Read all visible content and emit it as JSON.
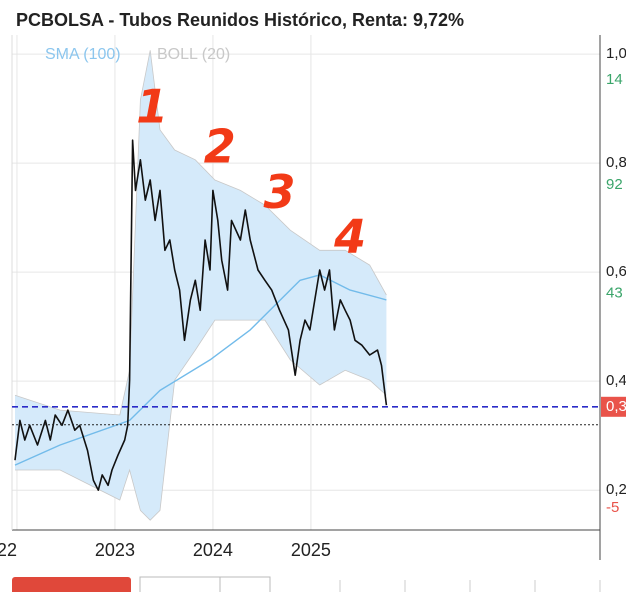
{
  "chart_data": {
    "type": "line",
    "title": "PCBOLSA - Tubos Reunidos Histórico, Renta: 9,72%",
    "series": [
      {
        "color": "#111111",
        "x": [
          2021.98,
          2022.03,
          2022.08,
          2022.13,
          2022.21,
          2022.29,
          2022.34,
          2022.39,
          2022.46,
          2022.52,
          2022.59,
          2022.64,
          2022.72,
          2022.78,
          2022.83,
          2022.87,
          2022.93,
          2022.97,
          2023.03,
          2023.1,
          2023.13,
          2023.15,
          2023.18,
          2023.21,
          2023.26,
          2023.31,
          2023.36,
          2023.41,
          2023.46,
          2023.51,
          2023.56,
          2023.61,
          2023.66,
          2023.71,
          2023.77,
          2023.82,
          2023.87,
          2023.92,
          2023.97,
          2024.0,
          2024.05,
          2024.09,
          2024.15,
          2024.19,
          2024.28,
          2024.33,
          2024.38,
          2024.46,
          2024.53,
          2024.6,
          2024.68,
          2024.77,
          2024.84,
          2024.89,
          2024.94,
          2024.99,
          2025.04,
          2025.09,
          2025.14,
          2025.19,
          2025.24,
          2025.3,
          2025.35,
          2025.4,
          2025.45,
          2025.52,
          2025.6,
          2025.68,
          2025.72,
          2025.77
        ],
        "values": [
          0.255,
          0.328,
          0.292,
          0.319,
          0.283,
          0.328,
          0.292,
          0.338,
          0.319,
          0.347,
          0.31,
          0.319,
          0.273,
          0.218,
          0.2,
          0.228,
          0.209,
          0.237,
          0.264,
          0.292,
          0.319,
          0.402,
          0.842,
          0.75,
          0.806,
          0.732,
          0.769,
          0.695,
          0.75,
          0.64,
          0.659,
          0.604,
          0.567,
          0.475,
          0.549,
          0.585,
          0.53,
          0.659,
          0.604,
          0.75,
          0.695,
          0.622,
          0.567,
          0.695,
          0.659,
          0.714,
          0.659,
          0.604,
          0.585,
          0.567,
          0.53,
          0.494,
          0.411,
          0.475,
          0.512,
          0.494,
          0.549,
          0.604,
          0.567,
          0.604,
          0.494,
          0.549,
          0.53,
          0.512,
          0.475,
          0.466,
          0.448,
          0.457,
          0.429,
          0.356
        ]
      },
      {
        "name": "SMA (100)",
        "color": "#72bbea",
        "x": [
          2021.98,
          2022.44,
          2023.15,
          2023.46,
          2023.97,
          2024.38,
          2024.89,
          2025.09,
          2025.4,
          2025.77
        ],
        "values": [
          0.246,
          0.283,
          0.328,
          0.383,
          0.439,
          0.494,
          0.585,
          0.595,
          0.567,
          0.549
        ]
      }
    ],
    "band": {
      "name": "BOLL (20)",
      "color": "#c8c8c8",
      "fill": "#d5eafa",
      "x": [
        2021.98,
        2022.44,
        2023.05,
        2023.15,
        2023.26,
        2023.36,
        2023.46,
        2023.61,
        2023.82,
        2024.02,
        2024.28,
        2024.53,
        2024.79,
        2025.09,
        2025.35,
        2025.6,
        2025.77
      ],
      "upper": [
        0.374,
        0.347,
        0.338,
        0.42,
        0.916,
        1.007,
        0.861,
        0.824,
        0.806,
        0.769,
        0.75,
        0.723,
        0.677,
        0.64,
        0.64,
        0.613,
        0.558
      ],
      "lower": [
        0.237,
        0.237,
        0.182,
        0.237,
        0.163,
        0.145,
        0.163,
        0.402,
        0.457,
        0.512,
        0.512,
        0.512,
        0.439,
        0.393,
        0.42,
        0.402,
        0.374
      ]
    },
    "xlim": [
      2021.98,
      2027.93
    ],
    "xticks": [
      {
        "value": 2022,
        "label": "022"
      },
      2023,
      2024,
      2025
    ],
    "ylim": [
      0.127,
      1.035
    ],
    "yticks": [
      {
        "value": 1.0,
        "label": "1,0"
      },
      {
        "value": 0.8,
        "label": "0,8"
      },
      {
        "value": 0.6,
        "label": "0,6"
      },
      {
        "value": 0.4,
        "label": "0,4"
      },
      {
        "value": 0.2,
        "label": "0,2"
      }
    ],
    "grid": true,
    "reference_lines": [
      {
        "value": 0.353,
        "color": "#2b2bc8",
        "style": "dashed",
        "label": "0,3",
        "label_color": "#e9534a"
      },
      {
        "value": 0.32,
        "color": "#222222",
        "style": "dotted"
      }
    ],
    "right_labels": [
      {
        "text": "14",
        "y": 0.952,
        "color": "#3aa56a"
      },
      {
        "text": "92",
        "y": 0.76,
        "color": "#3aa56a"
      },
      {
        "text": "43",
        "y": 0.561,
        "color": "#3aa56a"
      },
      {
        "text": "-5",
        "y": 0.167,
        "color": "#e9534a"
      }
    ],
    "annotations": [
      {
        "text": "1",
        "x": 2023.38,
        "y": 0.897
      },
      {
        "text": "2",
        "x": 2024.07,
        "y": 0.824
      },
      {
        "text": "3",
        "x": 2024.68,
        "y": 0.741
      },
      {
        "text": "4",
        "x": 2025.4,
        "y": 0.659
      }
    ],
    "annotation_color": "#f23a17"
  }
}
